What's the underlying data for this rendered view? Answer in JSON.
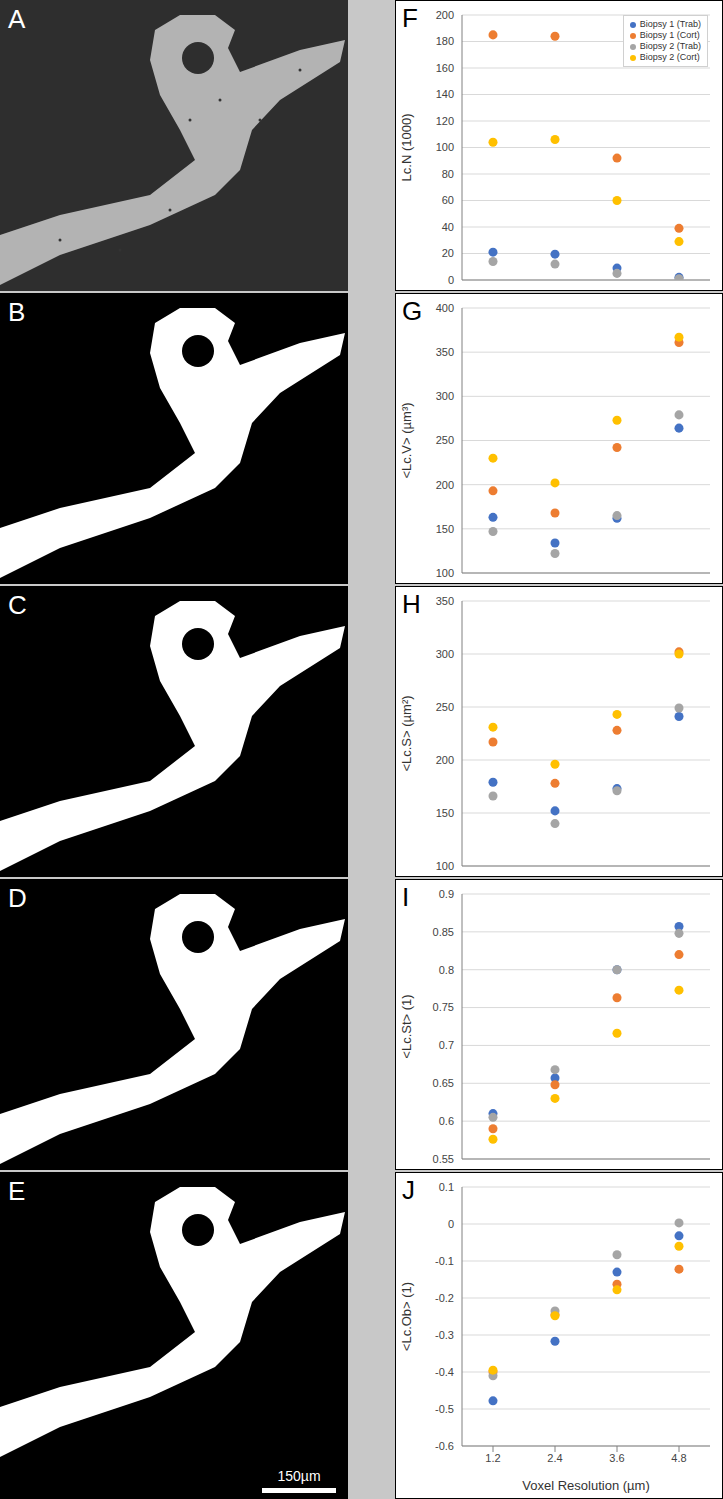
{
  "images": [
    {
      "panel": "A"
    },
    {
      "panel": "B"
    },
    {
      "panel": "C"
    },
    {
      "panel": "D"
    },
    {
      "panel": "E",
      "scale_bar": "150µm"
    }
  ],
  "chart_data": [
    {
      "type": "scatter",
      "panel": "F",
      "ylabel": "Lc.N (1000)",
      "x": [
        1.2,
        2.4,
        3.6,
        4.8
      ],
      "xlim": [
        0.6,
        5.4
      ],
      "xticks": [
        1.2,
        2.4,
        3.6,
        4.8
      ],
      "ylim": [
        0,
        200
      ],
      "yticks": [
        0,
        20,
        40,
        60,
        80,
        100,
        120,
        140,
        160,
        180,
        200
      ],
      "grid": true,
      "tick_labels": "y",
      "legend": "top right",
      "marker": "circle",
      "series": [
        {
          "name": "Biopsy 1 (Trab)",
          "color": "#4472c4",
          "values": [
            21,
            19.5,
            9,
            2
          ]
        },
        {
          "name": "Biopsy 1 (Cort)",
          "color": "#ed7d31",
          "values": [
            185,
            184,
            92,
            39
          ]
        },
        {
          "name": "Biopsy 2 (Trab)",
          "color": "#a5a5a5",
          "values": [
            14,
            12,
            5,
            1
          ]
        },
        {
          "name": "Biopsy 2 (Cort)",
          "color": "#ffc000",
          "values": [
            104,
            106,
            60,
            29
          ]
        }
      ]
    },
    {
      "type": "scatter",
      "panel": "G",
      "ylabel": "<Lc.V> (µm³)",
      "x": [
        1.2,
        2.4,
        3.6,
        4.8
      ],
      "xlim": [
        0.6,
        5.4
      ],
      "xticks": [
        1.2,
        2.4,
        3.6,
        4.8
      ],
      "ylim": [
        100,
        400
      ],
      "yticks": [
        100,
        150,
        200,
        250,
        300,
        350,
        400
      ],
      "grid": true,
      "tick_labels": "y",
      "marker": "circle",
      "series": [
        {
          "name": "Biopsy 1 (Trab)",
          "color": "#4472c4",
          "values": [
            163,
            134,
            162,
            264
          ]
        },
        {
          "name": "Biopsy 1 (Cort)",
          "color": "#ed7d31",
          "values": [
            193,
            168,
            242,
            361
          ]
        },
        {
          "name": "Biopsy 2 (Trab)",
          "color": "#a5a5a5",
          "values": [
            147,
            122,
            165,
            279
          ]
        },
        {
          "name": "Biopsy 2 (Cort)",
          "color": "#ffc000",
          "values": [
            230,
            202,
            273,
            367
          ]
        }
      ]
    },
    {
      "type": "scatter",
      "panel": "H",
      "ylabel": "<Lc.S> (µm²)",
      "x": [
        1.2,
        2.4,
        3.6,
        4.8
      ],
      "xlim": [
        0.6,
        5.4
      ],
      "xticks": [
        1.2,
        2.4,
        3.6,
        4.8
      ],
      "ylim": [
        100,
        350
      ],
      "yticks": [
        100,
        150,
        200,
        250,
        300,
        350
      ],
      "grid": true,
      "tick_labels": "y",
      "marker": "circle",
      "series": [
        {
          "name": "Biopsy 1 (Trab)",
          "color": "#4472c4",
          "values": [
            179,
            152,
            173,
            241
          ]
        },
        {
          "name": "Biopsy 1 (Cort)",
          "color": "#ed7d31",
          "values": [
            217,
            178,
            228,
            302
          ]
        },
        {
          "name": "Biopsy 2 (Trab)",
          "color": "#a5a5a5",
          "values": [
            166,
            140,
            171,
            249
          ]
        },
        {
          "name": "Biopsy 2 (Cort)",
          "color": "#ffc000",
          "values": [
            231,
            196,
            243,
            300
          ]
        }
      ]
    },
    {
      "type": "scatter",
      "panel": "I",
      "ylabel": "<Lc.St> (1)",
      "x": [
        1.2,
        2.4,
        3.6,
        4.8
      ],
      "xlim": [
        0.6,
        5.4
      ],
      "xticks": [
        1.2,
        2.4,
        3.6,
        4.8
      ],
      "ylim": [
        0.55,
        0.9
      ],
      "yticks": [
        0.55,
        0.6,
        0.65,
        0.7,
        0.75,
        0.8,
        0.85,
        0.9
      ],
      "grid": true,
      "tick_labels": "y",
      "marker": "circle",
      "series": [
        {
          "name": "Biopsy 1 (Trab)",
          "color": "#4472c4",
          "values": [
            0.61,
            0.657,
            0.8,
            0.857
          ]
        },
        {
          "name": "Biopsy 1 (Cort)",
          "color": "#ed7d31",
          "values": [
            0.59,
            0.648,
            0.763,
            0.82
          ]
        },
        {
          "name": "Biopsy 2 (Trab)",
          "color": "#a5a5a5",
          "values": [
            0.605,
            0.668,
            0.8,
            0.848
          ]
        },
        {
          "name": "Biopsy 2 (Cort)",
          "color": "#ffc000",
          "values": [
            0.576,
            0.63,
            0.716,
            0.773
          ]
        }
      ]
    },
    {
      "type": "scatter",
      "panel": "J",
      "ylabel": "<Lc.Ob> (1)",
      "xlabel": "Voxel Resolution (µm)",
      "x": [
        1.2,
        2.4,
        3.6,
        4.8
      ],
      "xlim": [
        0.6,
        5.4
      ],
      "xticks": [
        1.2,
        2.4,
        3.6,
        4.8
      ],
      "ylim": [
        -0.6,
        0.1
      ],
      "yticks": [
        -0.6,
        -0.5,
        -0.4,
        -0.3,
        -0.2,
        -0.1,
        0,
        0.1
      ],
      "grid": true,
      "tick_labels": true,
      "marker": "circle",
      "series": [
        {
          "name": "Biopsy 1 (Trab)",
          "color": "#4472c4",
          "values": [
            -0.478,
            -0.317,
            -0.13,
            -0.032
          ]
        },
        {
          "name": "Biopsy 1 (Cort)",
          "color": "#ed7d31",
          "values": [
            -0.4,
            -0.245,
            -0.163,
            -0.122
          ]
        },
        {
          "name": "Biopsy 2 (Trab)",
          "color": "#a5a5a5",
          "values": [
            -0.41,
            -0.235,
            -0.083,
            0.003
          ]
        },
        {
          "name": "Biopsy 2 (Cort)",
          "color": "#ffc000",
          "values": [
            -0.395,
            -0.248,
            -0.178,
            -0.06
          ]
        }
      ]
    }
  ]
}
